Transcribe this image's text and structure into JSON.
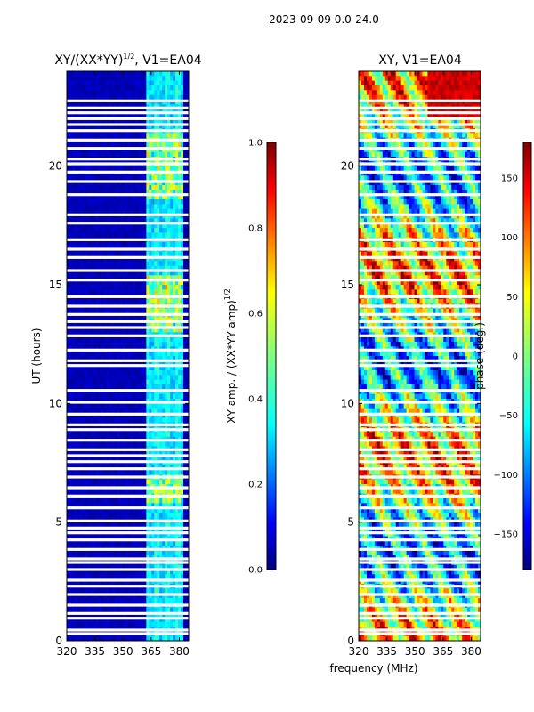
{
  "figure_title": "2023-09-09 0.0-24.0",
  "chart_data": [
    {
      "type": "heatmap",
      "title_base": "XY/(XX*YY)",
      "title_exp": "1/2",
      "title_tail": ", V1=EA04",
      "xlabel": "frequency (MHz)",
      "ylabel": "UT (hours)",
      "xlim": [
        320,
        385
      ],
      "ylim": [
        0,
        24
      ],
      "xticks": [
        "320",
        "335",
        "350",
        "365",
        "380"
      ],
      "yticks": [
        "0",
        "5",
        "10",
        "15",
        "20"
      ],
      "colorbar_label_base": "XY amp. / (XX*YY amp)",
      "colorbar_label_exp": "1/2",
      "colorbar_range": [
        0.0,
        1.0
      ],
      "colorbar_ticks": [
        "0.0",
        "0.2",
        "0.4",
        "0.6",
        "0.8",
        "1.0"
      ]
    },
    {
      "type": "heatmap",
      "title": "XY, V1=EA04",
      "xlim": [
        320,
        385
      ],
      "ylim": [
        0,
        24
      ],
      "xticks": [
        "320",
        "335",
        "350",
        "365",
        "380"
      ],
      "yticks": [
        "0",
        "5",
        "10",
        "15",
        "20"
      ],
      "colorbar_label": "phase (deg.)",
      "colorbar_range": [
        -180,
        180
      ],
      "colorbar_ticks": [
        "−150",
        "−100",
        "−50",
        "0",
        "50",
        "100",
        "150"
      ]
    }
  ],
  "flagged_hours": [
    0.3,
    0.45,
    0.95,
    1.15,
    1.5,
    1.95,
    2.3,
    2.55,
    3.0,
    3.3,
    3.45,
    3.85,
    4.25,
    4.55,
    4.75,
    5.05,
    5.6,
    6.1,
    6.45,
    6.9,
    7.25,
    7.55,
    7.8,
    8.05,
    8.45,
    8.9,
    9.1,
    9.55,
    10.05,
    10.55,
    11.6,
    11.8,
    12.25,
    12.85,
    13.2,
    13.45,
    13.75,
    14.1,
    14.5,
    15.2,
    15.6,
    16.15,
    16.5,
    16.9,
    17.6,
    17.95,
    18.8,
    19.35,
    19.75,
    20.1,
    20.3,
    20.75,
    21.1,
    21.5,
    21.75,
    22.0,
    22.25,
    22.45,
    22.75
  ],
  "colors": {
    "jet": [
      "#00007f",
      "#0000ff",
      "#007fff",
      "#00ffff",
      "#7fff7f",
      "#ffff00",
      "#ff7f00",
      "#ff0000",
      "#7f0000"
    ]
  }
}
